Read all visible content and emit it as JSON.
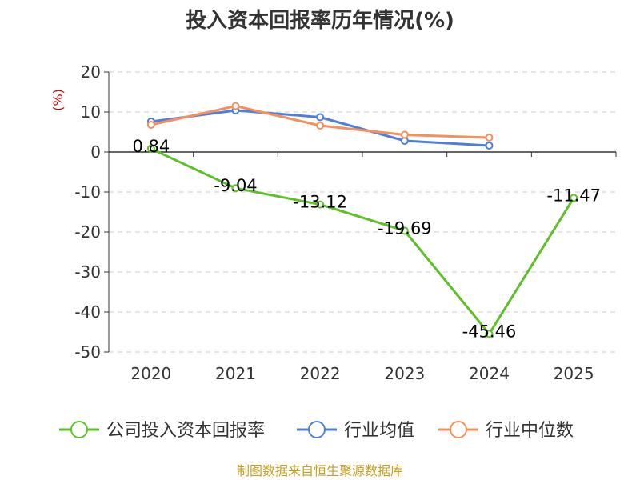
{
  "chart_data": {
    "type": "line",
    "title": "投入资本回报率历年情况(%)",
    "ylabel": "(%)",
    "categories": [
      "2020",
      "2021",
      "2022",
      "2023",
      "2024",
      "2025"
    ],
    "ylim": [
      -50,
      20
    ],
    "yticks": [
      20,
      10,
      0,
      -10,
      -20,
      -30,
      -40,
      -50
    ],
    "grid": true,
    "legend_position": "bottom",
    "series": [
      {
        "name": "公司投入资本回报率",
        "color": "#5cc127",
        "values": [
          0.84,
          -9.04,
          -13.12,
          -19.69,
          -45.46,
          -11.47
        ],
        "labels": [
          "0.84",
          "-9.04",
          "-13.12",
          "-19.69",
          "-45.46",
          "-11.47"
        ]
      },
      {
        "name": "行业均值",
        "color": "#4f7fdc",
        "values": [
          7.6,
          10.4,
          8.7,
          2.8,
          1.6,
          null
        ]
      },
      {
        "name": "行业中位数",
        "color": "#f5905a",
        "values": [
          6.8,
          11.5,
          6.6,
          4.3,
          3.6,
          null
        ]
      }
    ]
  },
  "source": "制图数据来自恒生聚源数据库"
}
